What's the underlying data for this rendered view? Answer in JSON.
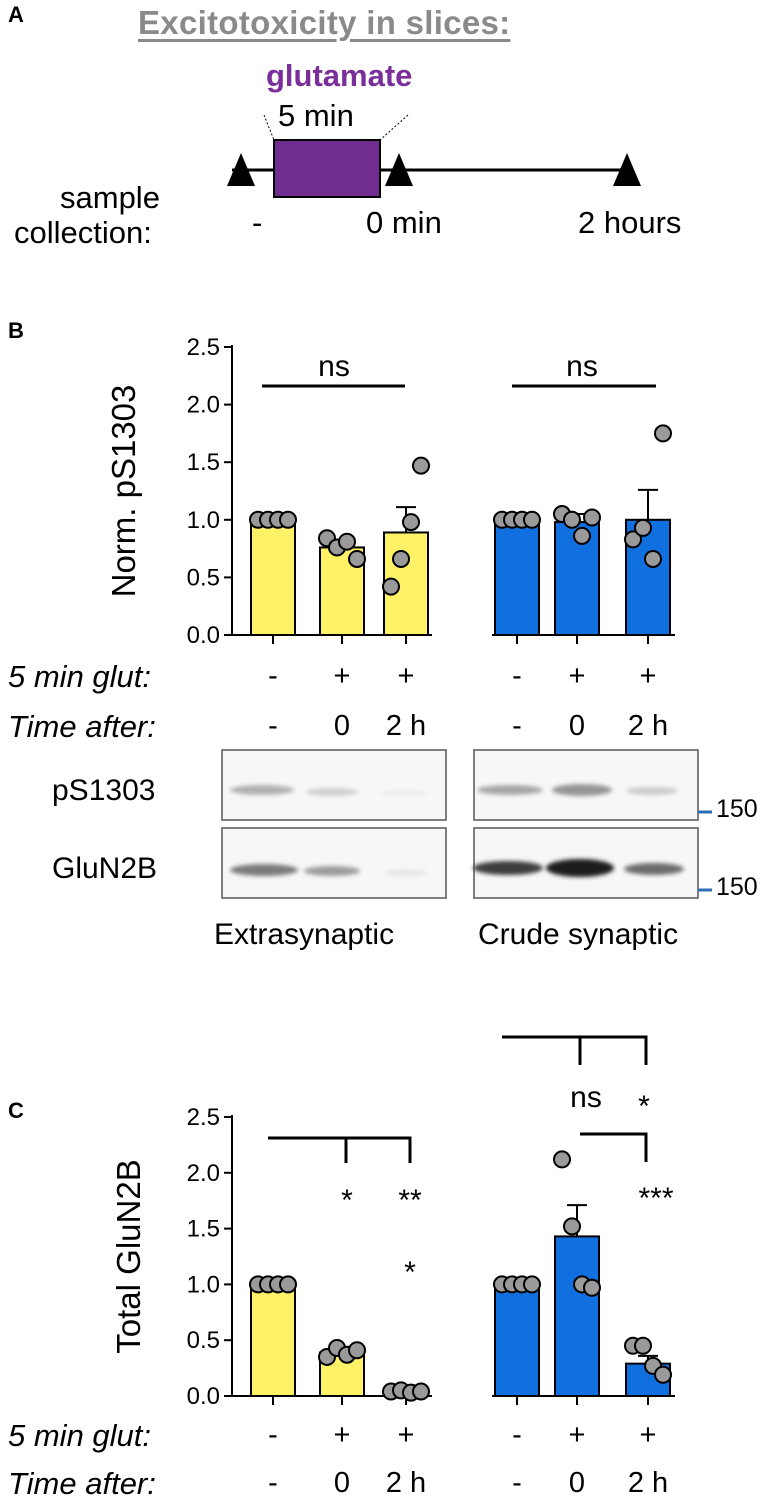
{
  "panel_a": {
    "label": "A",
    "title": "Excitotoxicity in slices:",
    "treatment": "glutamate",
    "duration": "5 min",
    "sample_label_1": "sample",
    "sample_label_2": "collection:",
    "timepoints": [
      "-",
      "0 min",
      "2 hours"
    ],
    "box_color": "#6f2c91"
  },
  "panel_b": {
    "label": "B",
    "row_glut_label": "5 min glut:",
    "row_glut": [
      "-",
      "+",
      "+",
      "-",
      "+",
      "+"
    ],
    "row_time_label": "Time after:",
    "row_time": [
      "-",
      "0",
      "2 h",
      "-",
      "0",
      "2 h"
    ],
    "blot_rows": [
      "pS1303",
      "GluN2B"
    ],
    "blot_groups": [
      "Extrasynaptic",
      "Crude synaptic"
    ],
    "mw_markers": [
      "150",
      "150"
    ]
  },
  "panel_c": {
    "label": "C",
    "row_glut_label": "5 min glut:",
    "row_glut": [
      "-",
      "+",
      "+",
      "-",
      "+",
      "+"
    ],
    "row_time_label": "Time after:",
    "row_time": [
      "-",
      "0",
      "2 h",
      "-",
      "0",
      "2 h"
    ]
  },
  "colors": {
    "extrasynaptic": "#fff266",
    "synaptic": "#1170e0",
    "points": "#9a9a9a"
  },
  "chart_data": [
    {
      "type": "bar",
      "ylabel": "Norm. pS1303",
      "ylim": [
        0,
        2.5
      ],
      "yticks": [
        "0.0",
        "0.5",
        "1.0",
        "1.5",
        "2.0",
        "2.5"
      ],
      "series": [
        {
          "name": "Extrasynaptic",
          "values": [
            1.0,
            0.76,
            0.89
          ],
          "sem": [
            0,
            0.06,
            0.22
          ],
          "points": [
            [
              1.0,
              1.0,
              1.0,
              1.0
            ],
            [
              0.84,
              0.76,
              0.81,
              0.66
            ],
            [
              0.42,
              0.66,
              0.98,
              1.47
            ]
          ]
        },
        {
          "name": "Crude synaptic",
          "values": [
            1.0,
            0.98,
            1.0
          ],
          "sem": [
            0,
            0.07,
            0.26
          ],
          "points": [
            [
              1.0,
              1.0,
              1.0,
              1.0
            ],
            [
              1.05,
              1.0,
              0.86,
              1.02
            ],
            [
              0.83,
              0.93,
              0.66,
              1.75
            ]
          ]
        }
      ],
      "annotations": [
        "ns",
        "ns"
      ]
    },
    {
      "type": "bar",
      "ylabel": "Total GluN2B",
      "ylim": [
        0,
        2.5
      ],
      "yticks": [
        "0.0",
        "0.5",
        "1.0",
        "1.5",
        "2.0",
        "2.5"
      ],
      "series": [
        {
          "name": "Extrasynaptic",
          "values": [
            1.0,
            0.39,
            0.04
          ],
          "sem": [
            0,
            0.03,
            0.02
          ],
          "points": [
            [
              1.0,
              1.0,
              1.0,
              1.0
            ],
            [
              0.35,
              0.43,
              0.37,
              0.41
            ],
            [
              0.04,
              0.05,
              0.03,
              0.04
            ]
          ]
        },
        {
          "name": "Crude synaptic",
          "values": [
            1.0,
            1.43,
            0.29
          ],
          "sem": [
            0,
            0.28,
            0.07
          ],
          "points": [
            [
              1.0,
              1.0,
              1.0,
              1.0
            ],
            [
              2.12,
              1.52,
              1.0,
              0.97
            ],
            [
              0.45,
              0.45,
              0.27,
              0.19
            ]
          ]
        }
      ],
      "annotations": [
        "*",
        "**",
        "*",
        "ns",
        "*",
        "***"
      ]
    }
  ]
}
